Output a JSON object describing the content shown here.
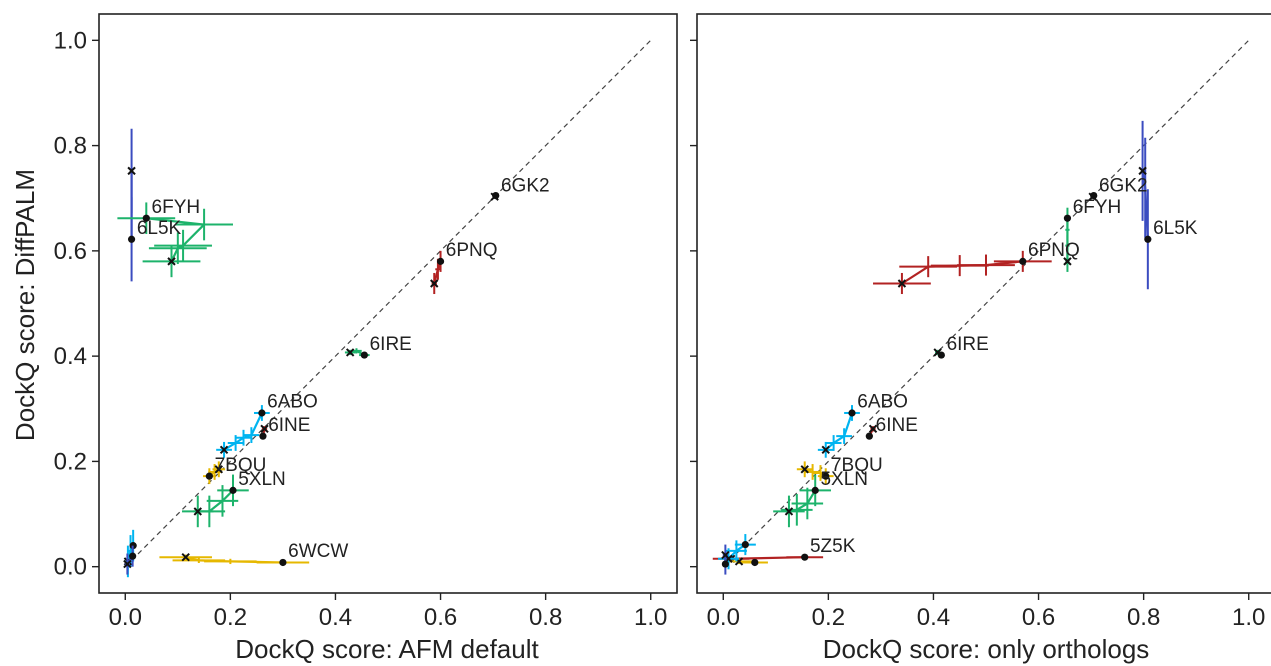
{
  "chart_data": [
    {
      "type": "scatter",
      "xlabel": "DockQ score: AFM default",
      "ylabel": "DockQ score: DiffPALM",
      "xlim": [
        -0.05,
        1.05
      ],
      "ylim": [
        -0.05,
        1.05
      ],
      "xticks": [
        "0.0",
        "0.2",
        "0.4",
        "0.6",
        "0.8",
        "1.0"
      ],
      "yticks": [
        "0.0",
        "0.2",
        "0.4",
        "0.6",
        "0.8",
        "1.0"
      ],
      "diagonal": "y = x",
      "series": [
        {
          "name": "6L5K",
          "color": "#3b4cc0",
          "start": [
            0.012,
            0.752
          ],
          "end": [
            0.012,
            0.622
          ],
          "mid": [],
          "yerr": [
            0.01,
            0.15
          ],
          "xerr": [
            0,
            0
          ]
        },
        {
          "name": "6FYH",
          "color": "#1db36b",
          "start": [
            0.088,
            0.58
          ],
          "end": [
            0.04,
            0.662
          ],
          "mid": [
            [
              0.1,
              0.605
            ],
            [
              0.11,
              0.61
            ],
            [
              0.15,
              0.65
            ]
          ],
          "yerr": [
            0.03,
            0.03
          ],
          "xerr": [
            0.05,
            0.06
          ]
        },
        {
          "name": "6GK2",
          "color": "#1db36b",
          "start": [
            0.703,
            0.703
          ],
          "end": [
            0.705,
            0.705
          ],
          "mid": [],
          "yerr": [
            0,
            0
          ],
          "xerr": [
            0,
            0
          ]
        },
        {
          "name": "6PNQ",
          "color": "#b22222",
          "start": [
            0.588,
            0.538
          ],
          "end": [
            0.6,
            0.58
          ],
          "mid": [
            [
              0.595,
              0.565
            ]
          ],
          "yerr": [
            0.02,
            0.02
          ],
          "xerr": [
            0.005,
            0.005
          ]
        },
        {
          "name": "6IRE",
          "color": "#1db36b",
          "start": [
            0.428,
            0.407
          ],
          "end": [
            0.455,
            0.402
          ],
          "mid": [
            [
              0.44,
              0.41
            ]
          ],
          "yerr": [
            0.005,
            0.005
          ],
          "xerr": [
            0.01,
            0.01
          ]
        },
        {
          "name": "6ABO",
          "color": "#00b4f0",
          "start": [
            0.188,
            0.222
          ],
          "end": [
            0.26,
            0.292
          ],
          "mid": [
            [
              0.21,
              0.235
            ],
            [
              0.225,
              0.245
            ],
            [
              0.24,
              0.25
            ]
          ],
          "yerr": [
            0.015,
            0.015
          ],
          "xerr": [
            0.015,
            0.015
          ]
        },
        {
          "name": "6INE",
          "color": "#b22222",
          "start": [
            0.265,
            0.262
          ],
          "end": [
            0.262,
            0.248
          ],
          "mid": [],
          "yerr": [
            0.005,
            0.005
          ],
          "xerr": [
            0.005,
            0.005
          ]
        },
        {
          "name": "7BQU",
          "color": "#e6b800",
          "start": [
            0.178,
            0.185
          ],
          "end": [
            0.16,
            0.172
          ],
          "mid": [
            [
              0.17,
              0.18
            ]
          ],
          "yerr": [
            0.015,
            0.015
          ],
          "xerr": [
            0.012,
            0.012
          ]
        },
        {
          "name": "5XLN",
          "color": "#1db36b",
          "start": [
            0.138,
            0.105
          ],
          "end": [
            0.205,
            0.145
          ],
          "mid": [
            [
              0.16,
              0.105
            ],
            [
              0.185,
              0.125
            ]
          ],
          "yerr": [
            0.03,
            0.03
          ],
          "xerr": [
            0.03,
            0.03
          ]
        },
        {
          "name": "6WCW",
          "color": "#e6b800",
          "start": [
            0.115,
            0.018
          ],
          "end": [
            0.3,
            0.008
          ],
          "mid": [
            [
              0.14,
              0.012
            ],
            [
              0.2,
              0.01
            ]
          ],
          "yerr": [
            0.005,
            0.005
          ],
          "xerr": [
            0.02,
            0.08
          ]
        },
        {
          "name": "",
          "color": "#00b4f0",
          "start": [
            0.005,
            0.01
          ],
          "end": [
            0.015,
            0.04
          ],
          "mid": [
            [
              0.01,
              0.03
            ]
          ],
          "yerr": [
            0.03,
            0.03
          ],
          "xerr": [
            0.005,
            0.005
          ]
        },
        {
          "name": "",
          "color": "#3b4cc0",
          "start": [
            0.004,
            0.005
          ],
          "end": [
            0.014,
            0.02
          ],
          "mid": [],
          "yerr": [
            0.02,
            0.02
          ],
          "xerr": [
            0.005,
            0.005
          ]
        }
      ],
      "labels": [
        {
          "text": "6FYH",
          "x": 0.05,
          "y": 0.672
        },
        {
          "text": "6L5K",
          "x": 0.022,
          "y": 0.632
        },
        {
          "text": "6GK2",
          "x": 0.715,
          "y": 0.713
        },
        {
          "text": "6PNQ",
          "x": 0.61,
          "y": 0.59
        },
        {
          "text": "6IRE",
          "x": 0.465,
          "y": 0.412
        },
        {
          "text": "6ABO",
          "x": 0.27,
          "y": 0.302
        },
        {
          "text": "6INE",
          "x": 0.272,
          "y": 0.258
        },
        {
          "text": "7BQU",
          "x": 0.17,
          "y": 0.182
        },
        {
          "text": "5XLN",
          "x": 0.215,
          "y": 0.155
        },
        {
          "text": "6WCW",
          "x": 0.31,
          "y": 0.018
        }
      ]
    },
    {
      "type": "scatter",
      "xlabel": "DockQ score: only orthologs",
      "ylabel": "",
      "xlim": [
        -0.05,
        1.05
      ],
      "ylim": [
        -0.05,
        1.05
      ],
      "xticks": [
        "0.0",
        "0.2",
        "0.4",
        "0.6",
        "0.8",
        "1.0"
      ],
      "yticks": [
        "0.0",
        "0.2",
        "0.4",
        "0.6",
        "0.8",
        "1.0"
      ],
      "diagonal": "y = x",
      "series": [
        {
          "name": "6L5K",
          "color": "#3b4cc0",
          "start": [
            0.798,
            0.752
          ],
          "end": [
            0.808,
            0.622
          ],
          "mid": [
            [
              0.803,
              0.72
            ]
          ],
          "yerr": [
            0.04,
            0.15
          ],
          "xerr": [
            0,
            0
          ]
        },
        {
          "name": "6FYH",
          "color": "#1db36b",
          "start": [
            0.655,
            0.58
          ],
          "end": [
            0.655,
            0.662
          ],
          "mid": [
            [
              0.655,
              0.61
            ],
            [
              0.655,
              0.64
            ]
          ],
          "yerr": [
            0.02,
            0.02
          ],
          "xerr": [
            0.004,
            0.004
          ]
        },
        {
          "name": "6GK2",
          "color": "#1db36b",
          "start": [
            0.703,
            0.703
          ],
          "end": [
            0.705,
            0.705
          ],
          "mid": [],
          "yerr": [
            0,
            0
          ],
          "xerr": [
            0,
            0
          ]
        },
        {
          "name": "6PNQ",
          "color": "#b22222",
          "start": [
            0.34,
            0.538
          ],
          "end": [
            0.57,
            0.58
          ],
          "mid": [
            [
              0.39,
              0.57
            ],
            [
              0.45,
              0.572
            ],
            [
              0.5,
              0.573
            ]
          ],
          "yerr": [
            0.02,
            0.02
          ],
          "xerr": [
            0.05,
            0.06
          ]
        },
        {
          "name": "6IRE",
          "color": "#1db36b",
          "start": [
            0.408,
            0.407
          ],
          "end": [
            0.415,
            0.402
          ],
          "mid": [],
          "yerr": [
            0.005,
            0.005
          ],
          "xerr": [
            0.005,
            0.005
          ]
        },
        {
          "name": "6ABO",
          "color": "#00b4f0",
          "start": [
            0.195,
            0.222
          ],
          "end": [
            0.245,
            0.292
          ],
          "mid": [
            [
              0.21,
              0.235
            ],
            [
              0.23,
              0.248
            ]
          ],
          "yerr": [
            0.015,
            0.015
          ],
          "xerr": [
            0.015,
            0.015
          ]
        },
        {
          "name": "6INE",
          "color": "#b22222",
          "start": [
            0.285,
            0.262
          ],
          "end": [
            0.278,
            0.248
          ],
          "mid": [],
          "yerr": [
            0.005,
            0.005
          ],
          "xerr": [
            0.005,
            0.005
          ]
        },
        {
          "name": "7BQU",
          "color": "#e6b800",
          "start": [
            0.155,
            0.185
          ],
          "end": [
            0.195,
            0.172
          ],
          "mid": [
            [
              0.17,
              0.18
            ],
            [
              0.185,
              0.178
            ]
          ],
          "yerr": [
            0.015,
            0.015
          ],
          "xerr": [
            0.015,
            0.015
          ]
        },
        {
          "name": "5XLN",
          "color": "#1db36b",
          "start": [
            0.125,
            0.105
          ],
          "end": [
            0.175,
            0.145
          ],
          "mid": [
            [
              0.14,
              0.108
            ],
            [
              0.16,
              0.12
            ]
          ],
          "yerr": [
            0.03,
            0.03
          ],
          "xerr": [
            0.03,
            0.03
          ]
        },
        {
          "name": "5Z5K",
          "color": "#b22222",
          "start": [
            0.015,
            0.015
          ],
          "end": [
            0.155,
            0.018
          ],
          "mid": [],
          "yerr": [
            0.005,
            0.005
          ],
          "xerr": [
            0.01,
            0.06
          ]
        },
        {
          "name": "",
          "color": "#e6b800",
          "start": [
            0.03,
            0.01
          ],
          "end": [
            0.06,
            0.008
          ],
          "mid": [],
          "yerr": [
            0.005,
            0.005
          ],
          "xerr": [
            0.01,
            0.04
          ]
        },
        {
          "name": "",
          "color": "#00b4f0",
          "start": [
            0.01,
            0.015
          ],
          "end": [
            0.042,
            0.042
          ],
          "mid": [
            [
              0.025,
              0.03
            ]
          ],
          "yerr": [
            0.02,
            0.02
          ],
          "xerr": [
            0.02,
            0.02
          ]
        },
        {
          "name": "",
          "color": "#3b4cc0",
          "start": [
            0.004,
            0.022
          ],
          "end": [
            0.004,
            0.005
          ],
          "mid": [],
          "yerr": [
            0.02,
            0.02
          ],
          "xerr": [
            0.005,
            0.005
          ]
        }
      ],
      "labels": [
        {
          "text": "6GK2",
          "x": 0.715,
          "y": 0.713
        },
        {
          "text": "6FYH",
          "x": 0.665,
          "y": 0.672
        },
        {
          "text": "6L5K",
          "x": 0.818,
          "y": 0.632
        },
        {
          "text": "6PNQ",
          "x": 0.58,
          "y": 0.59
        },
        {
          "text": "6IRE",
          "x": 0.425,
          "y": 0.412
        },
        {
          "text": "6ABO",
          "x": 0.255,
          "y": 0.302
        },
        {
          "text": "6INE",
          "x": 0.29,
          "y": 0.258
        },
        {
          "text": "7BQU",
          "x": 0.205,
          "y": 0.182
        },
        {
          "text": "5XLN",
          "x": 0.185,
          "y": 0.155
        },
        {
          "text": "5Z5K",
          "x": 0.165,
          "y": 0.028
        }
      ]
    }
  ]
}
